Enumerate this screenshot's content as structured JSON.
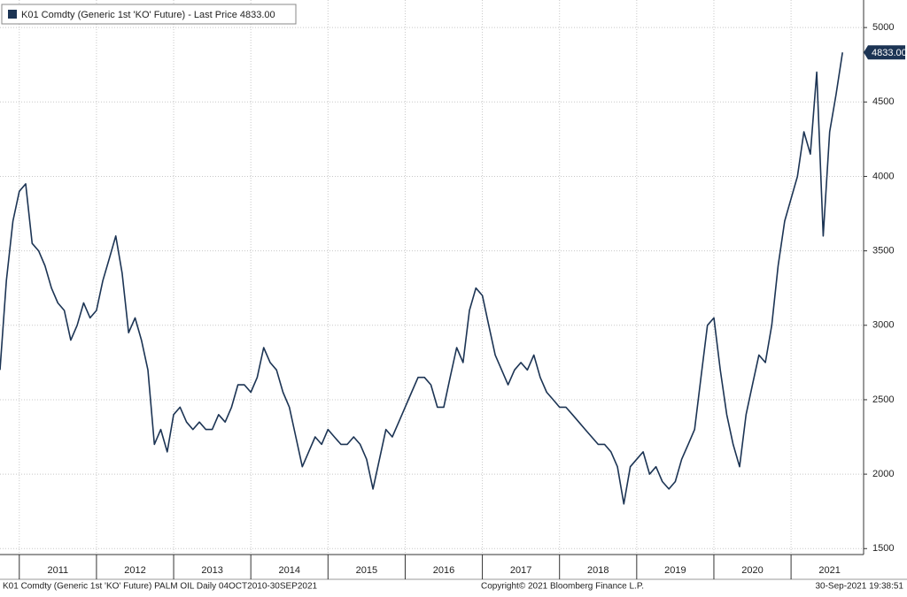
{
  "chart_data": {
    "type": "line",
    "title": "K01 Comdty (Generic 1st 'KO' Future) - Last Price 4833.00",
    "footer_left": "K01 Comdty (Generic 1st 'KO' Future) PALM OIL  Daily 04OCT2010-30SEP2021",
    "footer_center": "Copyright© 2021 Bloomberg Finance L.P.",
    "footer_right": "30-Sep-2021 19:38:51",
    "x": [
      2010.75,
      2010.833,
      2010.917,
      2011,
      2011.083,
      2011.167,
      2011.25,
      2011.333,
      2011.417,
      2011.5,
      2011.583,
      2011.667,
      2011.75,
      2011.833,
      2011.917,
      2012,
      2012.083,
      2012.167,
      2012.25,
      2012.333,
      2012.417,
      2012.5,
      2012.583,
      2012.667,
      2012.75,
      2012.833,
      2012.917,
      2013,
      2013.083,
      2013.167,
      2013.25,
      2013.333,
      2013.417,
      2013.5,
      2013.583,
      2013.667,
      2013.75,
      2013.833,
      2013.917,
      2014,
      2014.083,
      2014.167,
      2014.25,
      2014.333,
      2014.417,
      2014.5,
      2014.583,
      2014.667,
      2014.75,
      2014.833,
      2014.917,
      2015,
      2015.083,
      2015.167,
      2015.25,
      2015.333,
      2015.417,
      2015.5,
      2015.583,
      2015.667,
      2015.75,
      2015.833,
      2015.917,
      2016,
      2016.083,
      2016.167,
      2016.25,
      2016.333,
      2016.417,
      2016.5,
      2016.583,
      2016.667,
      2016.75,
      2016.833,
      2016.917,
      2017,
      2017.083,
      2017.167,
      2017.25,
      2017.333,
      2017.417,
      2017.5,
      2017.583,
      2017.667,
      2017.75,
      2017.833,
      2017.917,
      2018,
      2018.083,
      2018.167,
      2018.25,
      2018.333,
      2018.417,
      2018.5,
      2018.583,
      2018.667,
      2018.75,
      2018.833,
      2018.917,
      2019,
      2019.083,
      2019.167,
      2019.25,
      2019.333,
      2019.417,
      2019.5,
      2019.583,
      2019.667,
      2019.75,
      2019.833,
      2019.917,
      2020,
      2020.083,
      2020.167,
      2020.25,
      2020.333,
      2020.417,
      2020.5,
      2020.583,
      2020.667,
      2020.75,
      2020.833,
      2020.917,
      2021,
      2021.083,
      2021.167,
      2021.25,
      2021.333,
      2021.417,
      2021.5,
      2021.583,
      2021.667
    ],
    "series": [
      {
        "name": "K01 Comdty (Generic 1st 'KO' Future) - Last Price 4833.00",
        "color": "#1c3454",
        "values": [
          2700,
          3300,
          3700,
          3900,
          3950,
          3550,
          3500,
          3400,
          3250,
          3150,
          3100,
          2900,
          3000,
          3150,
          3050,
          3100,
          3300,
          3450,
          3600,
          3350,
          2950,
          3050,
          2900,
          2700,
          2200,
          2300,
          2150,
          2400,
          2450,
          2350,
          2300,
          2350,
          2300,
          2300,
          2400,
          2350,
          2450,
          2600,
          2600,
          2550,
          2650,
          2850,
          2750,
          2700,
          2550,
          2450,
          2250,
          2050,
          2150,
          2250,
          2200,
          2300,
          2250,
          2200,
          2200,
          2250,
          2200,
          2100,
          1900,
          2100,
          2300,
          2250,
          2350,
          2450,
          2550,
          2650,
          2650,
          2600,
          2450,
          2450,
          2650,
          2850,
          2750,
          3100,
          3250,
          3200,
          3000,
          2800,
          2700,
          2600,
          2700,
          2750,
          2700,
          2800,
          2650,
          2550,
          2500,
          2450,
          2450,
          2400,
          2350,
          2300,
          2250,
          2200,
          2200,
          2150,
          2050,
          1800,
          2050,
          2100,
          2150,
          2000,
          2050,
          1950,
          1900,
          1950,
          2100,
          2200,
          2300,
          2650,
          3000,
          3050,
          2700,
          2400,
          2200,
          2050,
          2400,
          2600,
          2800,
          2750,
          3000,
          3400,
          3700,
          3850,
          4000,
          4300,
          4150,
          4700,
          3600,
          4300,
          4550,
          4833
        ],
        "last_label": "4833.00"
      }
    ],
    "xlim": [
      2010.75,
      2021.94
    ],
    "xticks": [
      {
        "value": 2011.5,
        "label": "2011"
      },
      {
        "value": 2012.5,
        "label": "2012"
      },
      {
        "value": 2013.5,
        "label": "2013"
      },
      {
        "value": 2014.5,
        "label": "2014"
      },
      {
        "value": 2015.5,
        "label": "2015"
      },
      {
        "value": 2016.5,
        "label": "2016"
      },
      {
        "value": 2017.5,
        "label": "2017"
      },
      {
        "value": 2018.5,
        "label": "2018"
      },
      {
        "value": 2019.5,
        "label": "2019"
      },
      {
        "value": 2020.5,
        "label": "2020"
      },
      {
        "value": 2021.5,
        "label": "2021"
      }
    ],
    "ylim": [
      1460,
      5185
    ],
    "yticks": [
      1500,
      2000,
      2500,
      3000,
      3500,
      4000,
      4500,
      5000
    ],
    "grid": true
  }
}
